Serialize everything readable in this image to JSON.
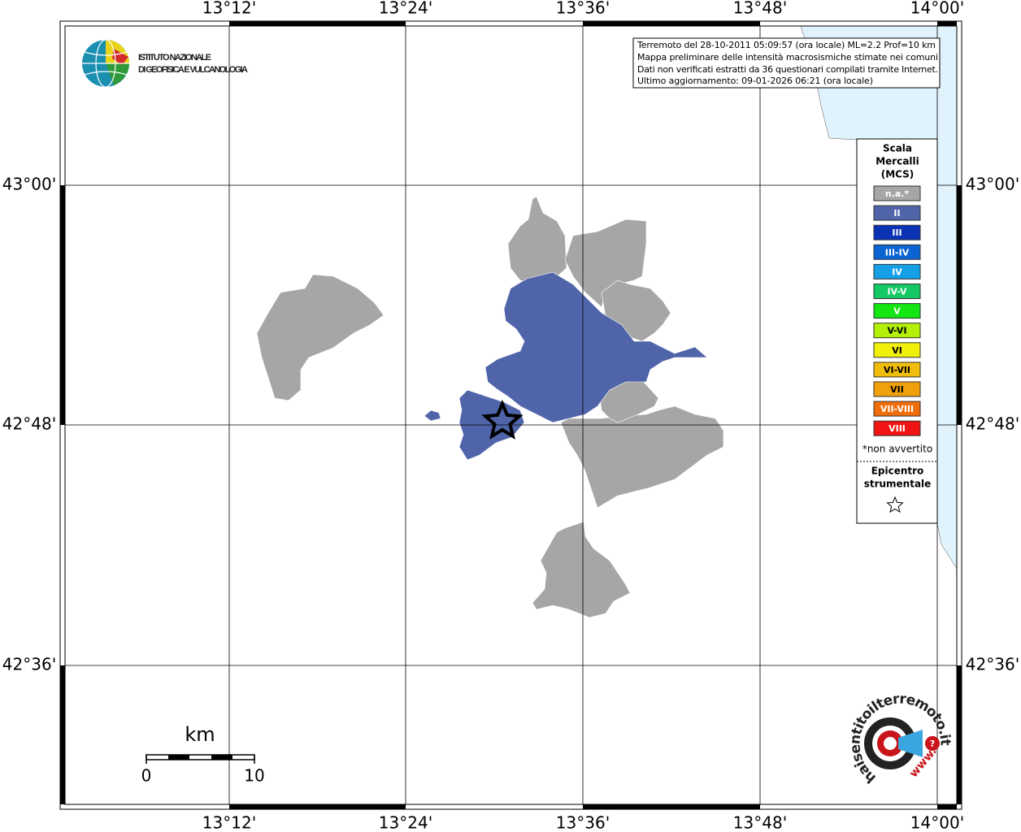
{
  "header": {
    "institute": [
      "ISTITUTO NAZIONALE",
      "DI GEOFISICA E VULCANOLOGIA"
    ]
  },
  "map": {
    "lon_labels": [
      "13°12'",
      "13°24'",
      "13°36'",
      "13°48'",
      "14°00'"
    ],
    "lat_labels": [
      "43°00'",
      "42°48'",
      "42°36'"
    ],
    "info": [
      "Terremoto del 28-10-2011 05:09:57 (ora locale) ML=2.2 Prof=10 km",
      "Mappa preliminare delle intensità macrosismiche stimate nei comuni",
      "Dati non verificati estratti da 36 questionari compilati tramite Internet.",
      "Ultimo aggiornamento: 09-01-2026 06:21 (ora locale)"
    ],
    "scale": {
      "unit": "km",
      "ticks": [
        "0",
        "10"
      ]
    }
  },
  "legend": {
    "title": [
      "Scala",
      "Mercalli",
      "(MCS)"
    ],
    "items": [
      {
        "label": "n.a.*",
        "color": "#a6a6a6"
      },
      {
        "label": "II",
        "color": "#5064aa"
      },
      {
        "label": "III",
        "color": "#0a32b4"
      },
      {
        "label": "III-IV",
        "color": "#0a64d2"
      },
      {
        "label": "IV",
        "color": "#14a0e6"
      },
      {
        "label": "IV-V",
        "color": "#14c864"
      },
      {
        "label": "V",
        "color": "#14e614"
      },
      {
        "label": "V-VI",
        "color": "#b4f00a"
      },
      {
        "label": "VI",
        "color": "#f0f00a"
      },
      {
        "label": "VI-VII",
        "color": "#f0be0a"
      },
      {
        "label": "VII",
        "color": "#f0a00a"
      },
      {
        "label": "VII-VIII",
        "color": "#f06e0a"
      },
      {
        "label": "VIII",
        "color": "#f01414"
      }
    ],
    "note": "*non avvertito",
    "epicentre": [
      "Epicentro",
      "strumentale"
    ]
  },
  "logo": {
    "text": "haisentitoilterremoto.it",
    "prefix": "www.",
    "mark": "?"
  }
}
